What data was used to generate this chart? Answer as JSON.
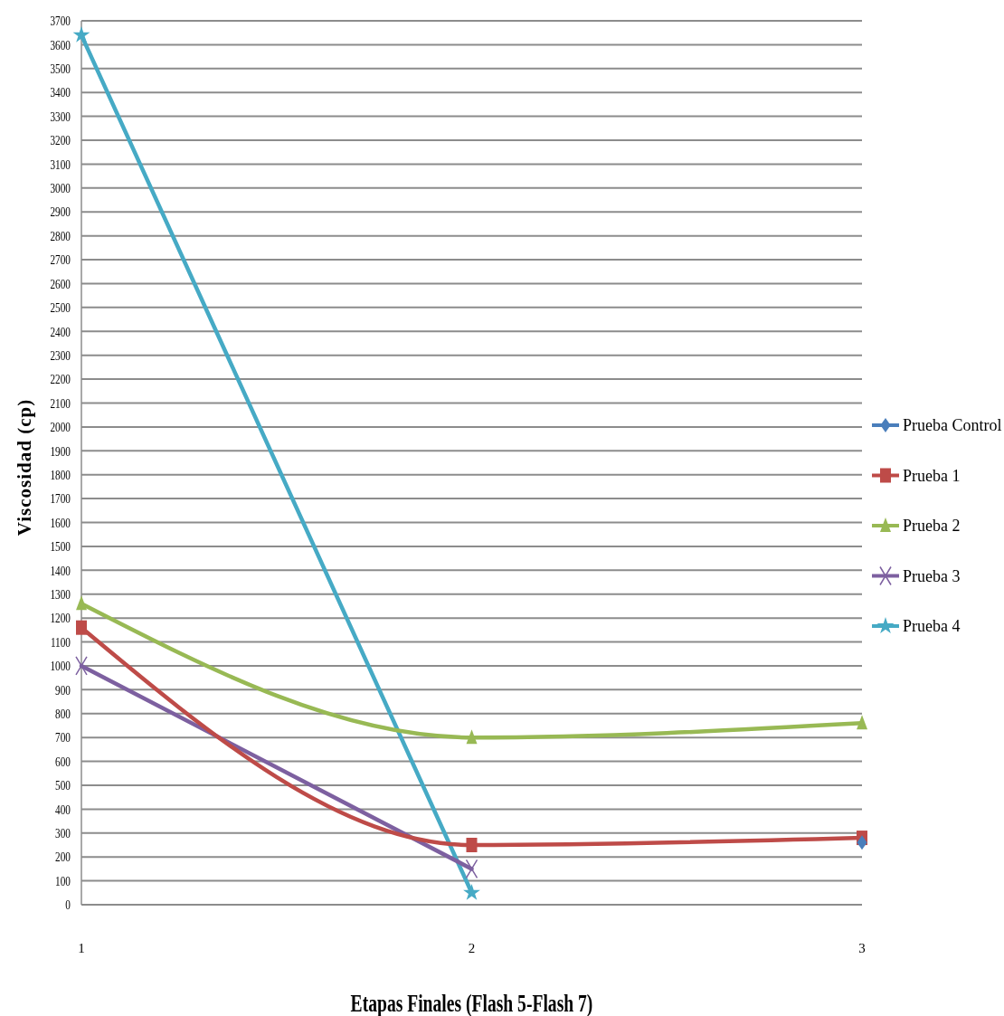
{
  "chart_data": {
    "type": "line",
    "xlabel": "Etapas Finales (Flash 5-Flash 7)",
    "ylabel": "Viscosidad (cp)",
    "categories": [
      "1",
      "2",
      "3"
    ],
    "series": [
      {
        "name": "Prueba Control",
        "color": "#4a7ebb",
        "marker": "diamond",
        "values": [
          null,
          null,
          260
        ]
      },
      {
        "name": "Prueba 1",
        "color": "#be4b48",
        "marker": "square",
        "values": [
          1160,
          250,
          280
        ]
      },
      {
        "name": "Prueba 2",
        "color": "#98b954",
        "marker": "triangle",
        "values": [
          1260,
          700,
          760
        ]
      },
      {
        "name": "Prueba 3",
        "color": "#7d60a0",
        "marker": "cross",
        "values": [
          1000,
          150,
          null
        ]
      },
      {
        "name": "Prueba 4",
        "color": "#46aac5",
        "marker": "star",
        "values": [
          3640,
          50,
          null
        ]
      }
    ],
    "ylim": [
      0,
      3700
    ],
    "yticks": [
      0,
      100,
      200,
      300,
      400,
      500,
      600,
      700,
      800,
      900,
      1000,
      1100,
      1200,
      1300,
      1400,
      1500,
      1600,
      1700,
      1800,
      1900,
      2000,
      2100,
      2200,
      2300,
      2400,
      2500,
      2600,
      2700,
      2800,
      2900,
      3000,
      3100,
      3200,
      3300,
      3400,
      3500,
      3600,
      3700
    ],
    "grid": "y",
    "legend": "right",
    "line_style": "solid"
  }
}
